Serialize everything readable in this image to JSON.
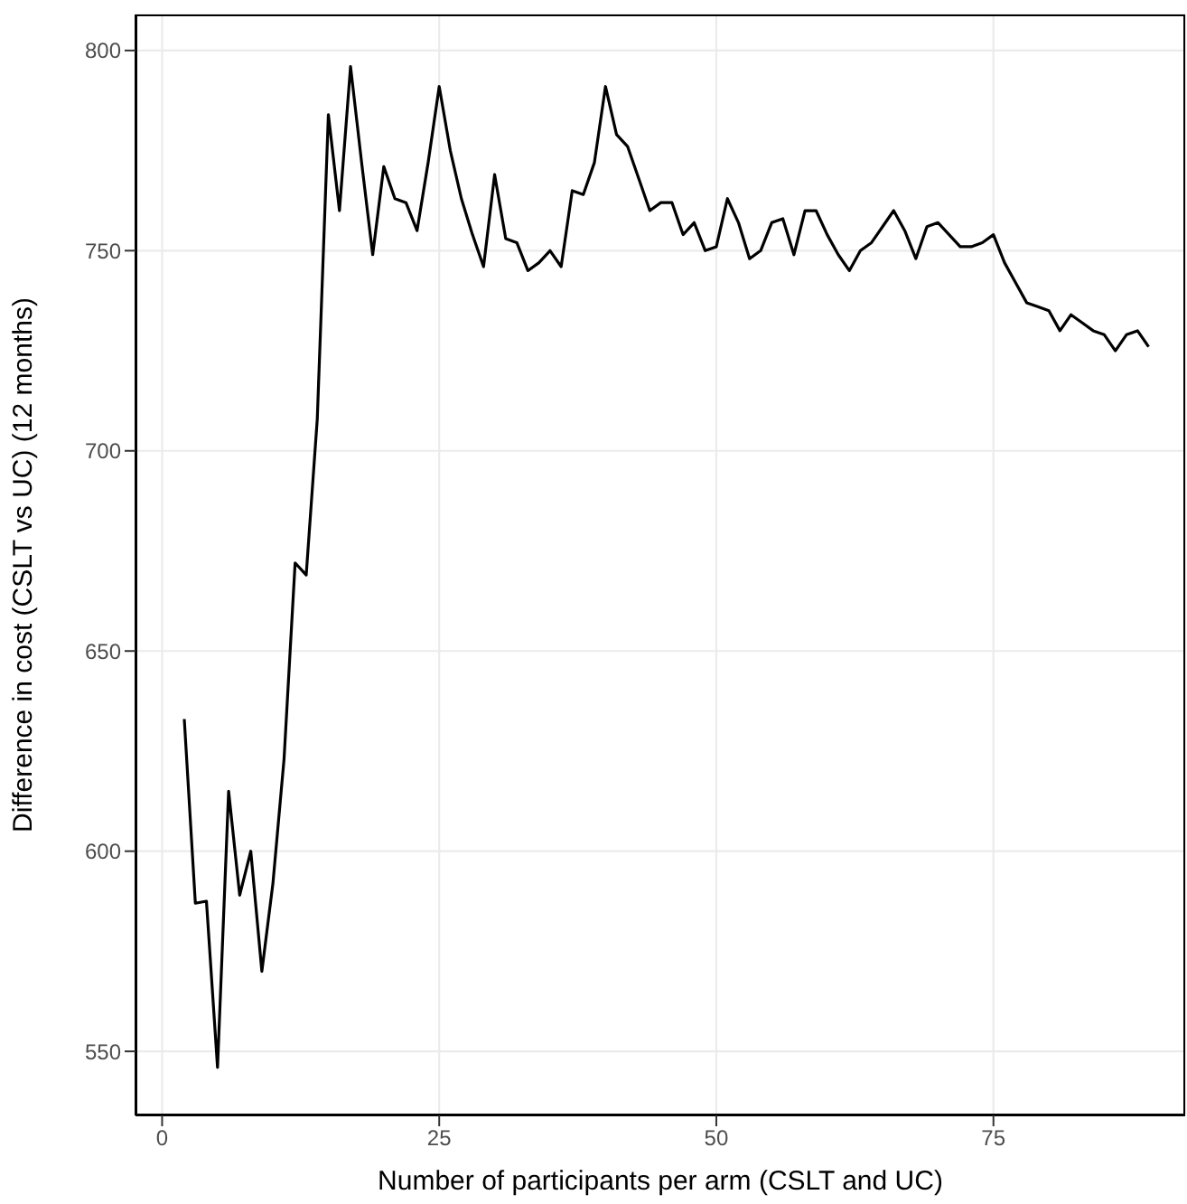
{
  "chart_data": {
    "type": "line",
    "xlabel": "Number of participants per arm (CSLT and UC)",
    "ylabel": "Difference in cost (CSLT vs UC) (12 months)",
    "x": [
      2,
      3,
      4,
      5,
      6,
      7,
      8,
      9,
      10,
      11,
      12,
      13,
      14,
      15,
      16,
      17,
      18,
      19,
      20,
      21,
      22,
      23,
      24,
      25,
      26,
      27,
      28,
      29,
      30,
      31,
      32,
      33,
      34,
      35,
      36,
      37,
      38,
      39,
      40,
      41,
      42,
      43,
      44,
      45,
      46,
      47,
      48,
      49,
      50,
      51,
      52,
      53,
      54,
      55,
      56,
      57,
      58,
      59,
      60,
      61,
      62,
      63,
      64,
      65,
      66,
      67,
      68,
      69,
      70,
      71,
      72,
      73,
      74,
      75,
      76,
      77,
      78,
      79,
      80,
      81,
      82,
      83,
      84,
      85,
      86,
      87,
      88,
      89
    ],
    "series": [
      {
        "color": "#000000",
        "values": [
          633,
          587,
          587.5,
          546,
          615,
          589,
          600,
          570,
          592,
          623,
          672,
          669,
          708,
          784,
          760,
          796,
          772,
          749,
          771,
          763,
          762,
          755,
          772,
          791,
          775,
          763,
          754,
          746,
          769,
          753,
          752,
          745,
          747,
          750,
          746,
          765,
          764,
          772,
          791,
          779,
          776,
          768,
          760,
          762,
          762,
          754,
          757,
          750,
          751,
          763,
          757,
          748,
          750,
          757,
          758,
          749,
          760,
          760,
          754,
          749,
          745,
          750,
          752,
          756,
          760,
          755,
          748,
          756,
          757,
          754,
          751,
          751,
          752,
          754,
          747,
          742,
          737,
          736,
          735,
          730,
          734,
          732,
          730,
          729,
          725,
          729,
          730,
          726
        ]
      }
    ],
    "xlim": [
      -2.4,
      92.3
    ],
    "xticks": [
      0,
      25,
      50,
      75
    ],
    "ylim": [
      534,
      809
    ],
    "yticks": [
      550,
      600,
      650,
      700,
      750,
      800
    ],
    "grid": true,
    "marker": "none",
    "line_style": "solid"
  }
}
